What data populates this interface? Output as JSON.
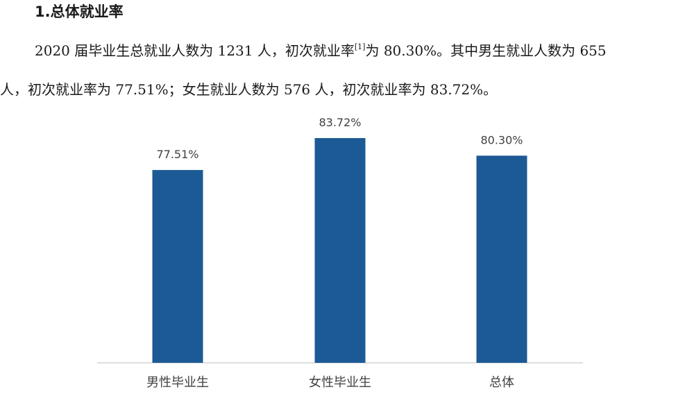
{
  "document": {
    "heading": "1.总体就业率",
    "paragraph": {
      "line1_a": "2020 届毕业生总就业人数为 1231 人，初次就业率",
      "line1_note": "[1]",
      "line1_b": "为 80.30%。其中男生就业人数为 655",
      "line2": "人，初次就业率为 77.51%；女生就业人数为 576 人，初次就业率为 83.72%。"
    }
  },
  "colors": {
    "bar": "#1c5a96",
    "label": "#404040",
    "axis": "#bfbfbf"
  },
  "chart_data": {
    "type": "bar",
    "title": "",
    "xlabel": "",
    "ylabel": "",
    "categories": [
      "男性毕业生",
      "女性毕业生",
      "总体"
    ],
    "values": [
      77.51,
      83.72,
      80.3
    ],
    "value_labels": [
      "77.51%",
      "83.72%",
      "80.30%"
    ],
    "ylim": [
      0,
      100
    ],
    "grid": false,
    "legend": "none"
  }
}
